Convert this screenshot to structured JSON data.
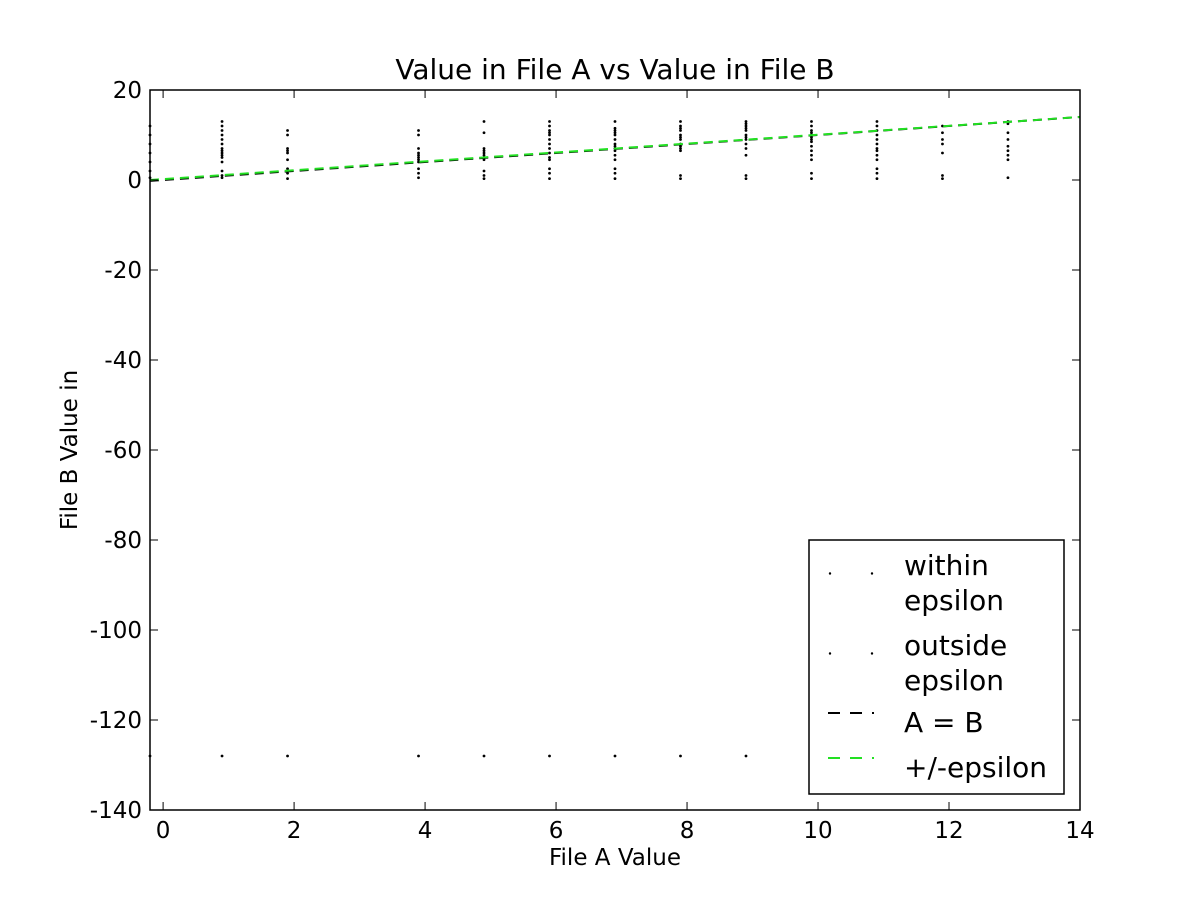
{
  "chart_data": {
    "type": "scatter",
    "title": "Value in File A vs Value in File B",
    "xlabel": "File A Value",
    "ylabel": "File B Value in",
    "xlim": [
      -0.2,
      14
    ],
    "ylim": [
      -140,
      20
    ],
    "xticks": [
      0,
      2,
      4,
      6,
      8,
      10,
      12,
      14
    ],
    "yticks": [
      20,
      0,
      -20,
      -40,
      -60,
      -80,
      -100,
      -120,
      -140
    ],
    "grid": false,
    "legend_position": "lower-right",
    "legend": [
      {
        "label_lines": [
          "within",
          "epsilon"
        ],
        "kind": "marker",
        "color": "#000000"
      },
      {
        "label_lines": [
          "outside",
          "epsilon"
        ],
        "kind": "marker",
        "color": "#000000"
      },
      {
        "label_lines": [
          "A = B"
        ],
        "kind": "dashed-line",
        "color": "#000000"
      },
      {
        "label_lines": [
          "+/-epsilon"
        ],
        "kind": "dashed-line",
        "color": "#22e022"
      }
    ],
    "series": [
      {
        "name": "within epsilon",
        "color": "#000000",
        "points": [
          [
            -0.2,
            0.5
          ],
          [
            -0.2,
            2
          ],
          [
            -0.2,
            4
          ],
          [
            -0.2,
            6
          ],
          [
            -0.2,
            8
          ],
          [
            -0.2,
            10
          ],
          [
            -0.2,
            12
          ],
          [
            -0.2,
            -128
          ],
          [
            0.9,
            0.5
          ],
          [
            0.9,
            1
          ],
          [
            0.9,
            2
          ],
          [
            0.9,
            4
          ],
          [
            0.9,
            5
          ],
          [
            0.9,
            5.5
          ],
          [
            0.9,
            6
          ],
          [
            0.9,
            6.5
          ],
          [
            0.9,
            7
          ],
          [
            0.9,
            8
          ],
          [
            0.9,
            9
          ],
          [
            0.9,
            10
          ],
          [
            0.9,
            11
          ],
          [
            0.9,
            12
          ],
          [
            0.9,
            13
          ],
          [
            0.9,
            -128
          ],
          [
            1.9,
            0.3
          ],
          [
            1.9,
            1.5
          ],
          [
            1.9,
            2.5
          ],
          [
            1.9,
            4.5
          ],
          [
            1.9,
            6
          ],
          [
            1.9,
            6.5
          ],
          [
            1.9,
            7
          ],
          [
            1.9,
            10
          ],
          [
            1.9,
            11
          ],
          [
            1.9,
            -128
          ],
          [
            3.9,
            0.5
          ],
          [
            3.9,
            1.5
          ],
          [
            3.9,
            2.5
          ],
          [
            3.9,
            4
          ],
          [
            3.9,
            4.5
          ],
          [
            3.9,
            5
          ],
          [
            3.9,
            5.5
          ],
          [
            3.9,
            6
          ],
          [
            3.9,
            7
          ],
          [
            3.9,
            10
          ],
          [
            3.9,
            11
          ],
          [
            3.9,
            -128
          ],
          [
            4.9,
            0.3
          ],
          [
            4.9,
            1
          ],
          [
            4.9,
            2
          ],
          [
            4.9,
            4.5
          ],
          [
            4.9,
            5
          ],
          [
            4.9,
            5.5
          ],
          [
            4.9,
            6
          ],
          [
            4.9,
            6.5
          ],
          [
            4.9,
            7
          ],
          [
            4.9,
            10.5
          ],
          [
            4.9,
            13
          ],
          [
            4.9,
            -128
          ],
          [
            5.9,
            0.3
          ],
          [
            5.9,
            1.5
          ],
          [
            5.9,
            2.5
          ],
          [
            5.9,
            4.5
          ],
          [
            5.9,
            5
          ],
          [
            5.9,
            6
          ],
          [
            5.9,
            7
          ],
          [
            5.9,
            8
          ],
          [
            5.9,
            9
          ],
          [
            5.9,
            10
          ],
          [
            5.9,
            10.5
          ],
          [
            5.9,
            11
          ],
          [
            5.9,
            12
          ],
          [
            5.9,
            13
          ],
          [
            5.9,
            -128
          ],
          [
            6.9,
            0.3
          ],
          [
            6.9,
            1.5
          ],
          [
            6.9,
            2.5
          ],
          [
            6.9,
            4.5
          ],
          [
            6.9,
            5.5
          ],
          [
            6.9,
            6.5
          ],
          [
            6.9,
            7
          ],
          [
            6.9,
            7.5
          ],
          [
            6.9,
            8
          ],
          [
            6.9,
            9
          ],
          [
            6.9,
            10
          ],
          [
            6.9,
            10.5
          ],
          [
            6.9,
            11
          ],
          [
            6.9,
            11.5
          ],
          [
            6.9,
            13
          ],
          [
            6.9,
            -128
          ],
          [
            7.9,
            0.3
          ],
          [
            7.9,
            1
          ],
          [
            7.9,
            6.5
          ],
          [
            7.9,
            7
          ],
          [
            7.9,
            7.5
          ],
          [
            7.9,
            8
          ],
          [
            7.9,
            9
          ],
          [
            7.9,
            9.5
          ],
          [
            7.9,
            10
          ],
          [
            7.9,
            11
          ],
          [
            7.9,
            11.5
          ],
          [
            7.9,
            12
          ],
          [
            7.9,
            13
          ],
          [
            7.9,
            -128
          ],
          [
            8.9,
            0.3
          ],
          [
            8.9,
            1
          ],
          [
            8.9,
            5.5
          ],
          [
            8.9,
            7
          ],
          [
            8.9,
            8
          ],
          [
            8.9,
            9
          ],
          [
            8.9,
            9.5
          ],
          [
            8.9,
            10
          ],
          [
            8.9,
            11
          ],
          [
            8.9,
            11.5
          ],
          [
            8.9,
            12
          ],
          [
            8.9,
            12.5
          ],
          [
            8.9,
            13
          ],
          [
            8.9,
            -128
          ],
          [
            9.9,
            0.3
          ],
          [
            9.9,
            1.5
          ],
          [
            9.9,
            4.5
          ],
          [
            9.9,
            5.5
          ],
          [
            9.9,
            6.5
          ],
          [
            9.9,
            7.5
          ],
          [
            9.9,
            8.5
          ],
          [
            9.9,
            9
          ],
          [
            9.9,
            9.5
          ],
          [
            9.9,
            10
          ],
          [
            9.9,
            10.5
          ],
          [
            9.9,
            11
          ],
          [
            9.9,
            12
          ],
          [
            9.9,
            13
          ],
          [
            10.9,
            0.3
          ],
          [
            10.9,
            1.5
          ],
          [
            10.9,
            2.5
          ],
          [
            10.9,
            4.5
          ],
          [
            10.9,
            5.5
          ],
          [
            10.9,
            6.5
          ],
          [
            10.9,
            7
          ],
          [
            10.9,
            8
          ],
          [
            10.9,
            9
          ],
          [
            10.9,
            10
          ],
          [
            10.9,
            11
          ],
          [
            10.9,
            12
          ],
          [
            10.9,
            13
          ],
          [
            11.9,
            0.3
          ],
          [
            11.9,
            1
          ],
          [
            11.9,
            6
          ],
          [
            11.9,
            8
          ],
          [
            11.9,
            9
          ],
          [
            11.9,
            10.5
          ],
          [
            12.9,
            0.5
          ],
          [
            12.9,
            4.5
          ],
          [
            12.9,
            5.5
          ],
          [
            12.9,
            6.5
          ],
          [
            12.9,
            7.5
          ],
          [
            12.9,
            9
          ],
          [
            12.9,
            10.5
          ],
          [
            12.9,
            12.5
          ]
        ]
      },
      {
        "name": "outside epsilon",
        "color": "#000000",
        "points": [
          [
            11.9,
            12
          ],
          [
            12.9,
            13
          ]
        ]
      },
      {
        "name": "A = B",
        "color": "#000000",
        "line": [
          [
            -0.2,
            -0.2
          ],
          [
            14,
            14
          ]
        ]
      },
      {
        "name": "+/-epsilon",
        "color": "#22e022",
        "line": [
          [
            -0.2,
            0
          ],
          [
            14,
            14
          ]
        ]
      }
    ]
  }
}
